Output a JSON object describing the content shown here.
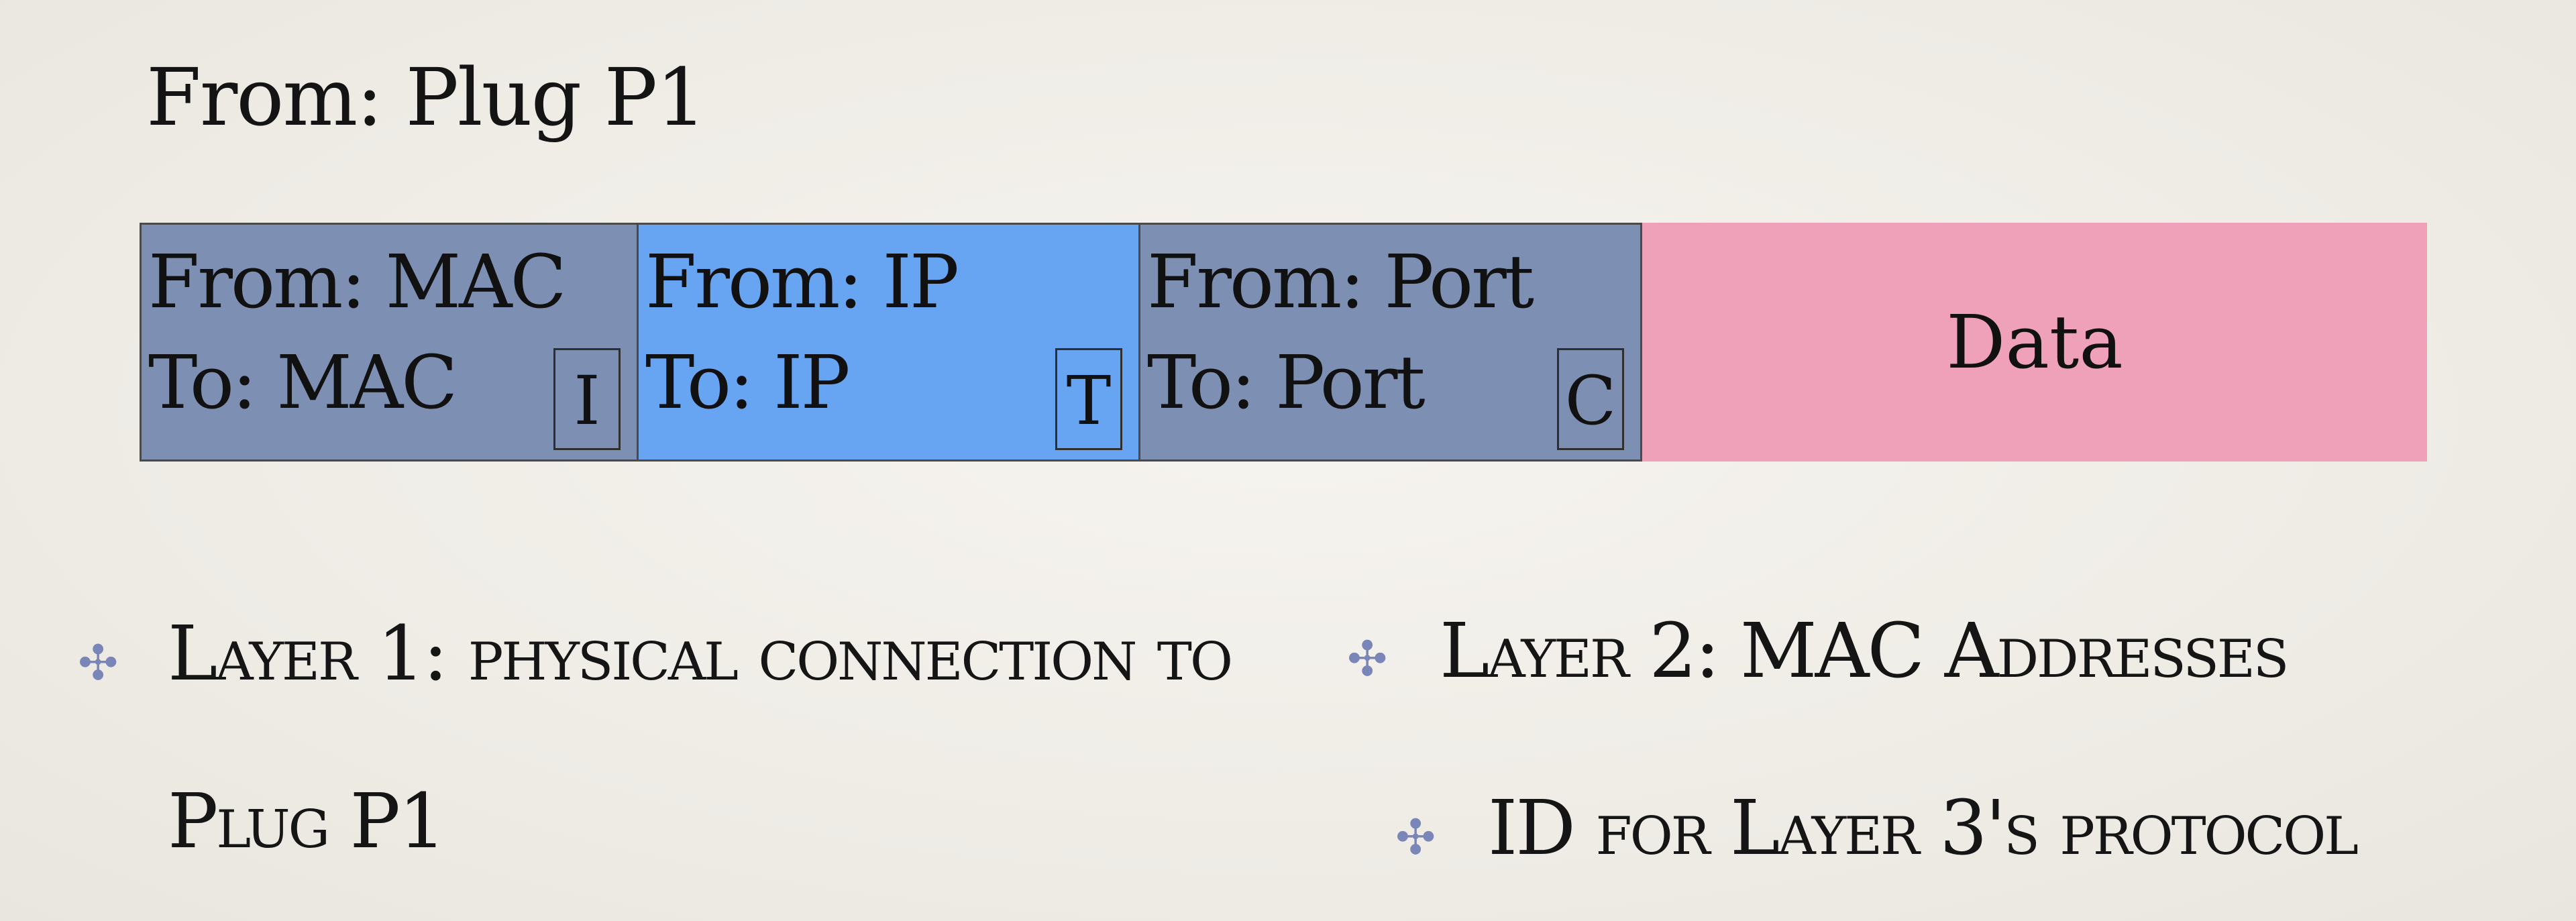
{
  "title": "From: Plug P1",
  "packet": {
    "segments": [
      {
        "from": "From: MAC",
        "to": "To: MAC",
        "tag": "I"
      },
      {
        "from": "From: IP",
        "to": "To: IP",
        "tag": "T"
      },
      {
        "from": "From: Port",
        "to": "To: Port",
        "tag": "C"
      }
    ],
    "data_label": "Data",
    "colors": {
      "mac": "#7d8fb3",
      "ip": "#67a4f2",
      "port": "#7d8fb3",
      "data": "#f0a1ba"
    }
  },
  "bullets": {
    "icon": "four-petal-flower-icon",
    "icon_color": "#7a86b8",
    "layer1_line1": "Layer 1: physical connection to",
    "layer1_line2": "Plug P1",
    "layer2": "Layer 2: MAC Addresses",
    "layer2_sub": "ID for Layer 3's protocol"
  }
}
